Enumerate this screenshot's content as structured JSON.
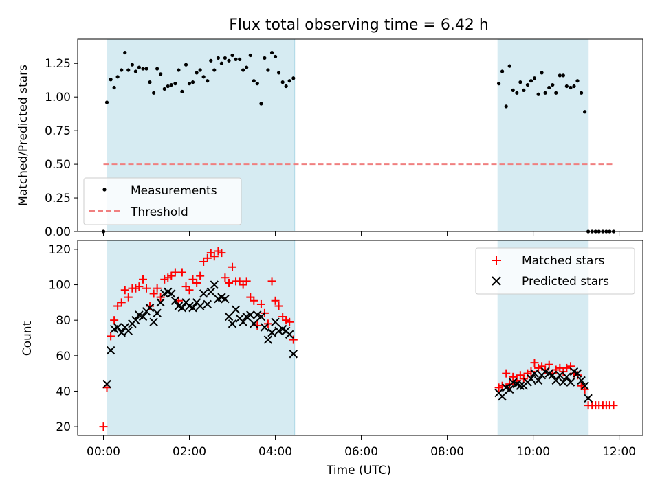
{
  "colors": {
    "band": "#add8e6",
    "threshold": "#f08080",
    "matched": "#ff0000",
    "predicted": "#000000",
    "measurement": "#000000"
  },
  "chart_data": [
    {
      "type": "scatter",
      "title": "Flux total observing time = 6.42 h",
      "xlabel": "",
      "ylabel": "Matched/Predicted stars",
      "xlim": [
        -0.6,
        12.55
      ],
      "ylim": [
        0,
        1.43
      ],
      "yticks": [
        0,
        0.25,
        0.5,
        0.75,
        1.0,
        1.25
      ],
      "ytick_labels": [
        "0.00",
        "0.25",
        "0.50",
        "0.75",
        "1.00",
        "1.25"
      ],
      "observing_windows_hours": [
        [
          0.08,
          4.45
        ],
        [
          9.18,
          11.28
        ]
      ],
      "legend": {
        "position": "lower-left",
        "entries": [
          "Measurements",
          "Threshold"
        ]
      },
      "threshold": {
        "name": "Threshold",
        "value": 0.5,
        "x_range": [
          0.0,
          11.85
        ]
      },
      "series": [
        {
          "name": "Measurements",
          "marker": "dot",
          "x": [
            0.0,
            0.08,
            0.17,
            0.25,
            0.33,
            0.42,
            0.5,
            0.58,
            0.67,
            0.75,
            0.83,
            0.92,
            1.0,
            1.08,
            1.17,
            1.25,
            1.33,
            1.42,
            1.5,
            1.58,
            1.67,
            1.75,
            1.83,
            1.92,
            2.0,
            2.08,
            2.17,
            2.25,
            2.33,
            2.42,
            2.5,
            2.58,
            2.67,
            2.75,
            2.83,
            2.92,
            3.0,
            3.08,
            3.17,
            3.25,
            3.33,
            3.42,
            3.5,
            3.58,
            3.67,
            3.75,
            3.83,
            3.92,
            4.0,
            4.08,
            4.17,
            4.25,
            4.33,
            4.42,
            9.2,
            9.28,
            9.37,
            9.45,
            9.53,
            9.62,
            9.7,
            9.78,
            9.87,
            9.95,
            10.03,
            10.12,
            10.2,
            10.28,
            10.37,
            10.45,
            10.53,
            10.62,
            10.7,
            10.78,
            10.87,
            10.95,
            11.03,
            11.12,
            11.2,
            11.28,
            11.37,
            11.45,
            11.53,
            11.62,
            11.7,
            11.78,
            11.87
          ],
          "values": [
            0.0,
            0.96,
            1.13,
            1.07,
            1.15,
            1.2,
            1.33,
            1.2,
            1.24,
            1.19,
            1.22,
            1.21,
            1.21,
            1.11,
            1.03,
            1.21,
            1.17,
            1.06,
            1.08,
            1.09,
            1.1,
            1.2,
            1.04,
            1.24,
            1.1,
            1.11,
            1.18,
            1.2,
            1.15,
            1.12,
            1.27,
            1.2,
            1.29,
            1.25,
            1.29,
            1.27,
            1.31,
            1.28,
            1.28,
            1.2,
            1.22,
            1.31,
            1.12,
            1.1,
            0.95,
            1.29,
            1.2,
            1.33,
            1.3,
            1.18,
            1.11,
            1.08,
            1.12,
            1.14,
            1.1,
            1.19,
            0.93,
            1.23,
            1.05,
            1.03,
            1.11,
            1.05,
            1.09,
            1.12,
            1.14,
            1.02,
            1.18,
            1.03,
            1.07,
            1.09,
            1.03,
            1.16,
            1.16,
            1.08,
            1.07,
            1.08,
            1.12,
            1.03,
            0.89,
            0.0,
            0.0,
            0.0,
            0.0,
            0.0,
            0.0,
            0.0,
            0.0
          ]
        }
      ]
    },
    {
      "type": "scatter",
      "title": "",
      "xlabel": "Time (UTC)",
      "ylabel": "Count",
      "xlim": [
        -0.6,
        12.55
      ],
      "ylim": [
        15,
        125
      ],
      "xticks": [
        0,
        2,
        4,
        6,
        8,
        10,
        12
      ],
      "xtick_labels": [
        "00:00",
        "02:00",
        "04:00",
        "06:00",
        "08:00",
        "10:00",
        "12:00"
      ],
      "yticks": [
        20,
        40,
        60,
        80,
        100,
        120
      ],
      "ytick_labels": [
        "20",
        "40",
        "60",
        "80",
        "100",
        "120"
      ],
      "observing_windows_hours": [
        [
          0.08,
          4.45
        ],
        [
          9.18,
          11.28
        ]
      ],
      "legend": {
        "position": "upper-right",
        "entries": [
          "Matched stars",
          "Predicted stars"
        ]
      },
      "series": [
        {
          "name": "Matched stars",
          "marker": "plus",
          "x": [
            0.0,
            0.08,
            0.17,
            0.25,
            0.33,
            0.42,
            0.5,
            0.58,
            0.67,
            0.75,
            0.83,
            0.92,
            1.0,
            1.08,
            1.17,
            1.25,
            1.33,
            1.42,
            1.5,
            1.58,
            1.67,
            1.75,
            1.83,
            1.92,
            2.0,
            2.08,
            2.17,
            2.25,
            2.33,
            2.42,
            2.5,
            2.58,
            2.67,
            2.75,
            2.83,
            2.92,
            3.0,
            3.08,
            3.17,
            3.25,
            3.33,
            3.42,
            3.5,
            3.58,
            3.67,
            3.75,
            3.83,
            3.92,
            4.0,
            4.08,
            4.17,
            4.25,
            4.33,
            4.42,
            9.2,
            9.28,
            9.37,
            9.45,
            9.53,
            9.62,
            9.7,
            9.78,
            9.87,
            9.95,
            10.03,
            10.12,
            10.2,
            10.28,
            10.37,
            10.45,
            10.53,
            10.62,
            10.7,
            10.78,
            10.87,
            10.95,
            11.03,
            11.12,
            11.2,
            11.28,
            11.37,
            11.45,
            11.53,
            11.62,
            11.7,
            11.78,
            11.87
          ],
          "values": [
            20,
            42,
            71,
            80,
            88,
            90,
            97,
            93,
            98,
            98,
            99,
            103,
            98,
            88,
            95,
            98,
            93,
            103,
            104,
            105,
            107,
            91,
            107,
            99,
            97,
            103,
            101,
            105,
            113,
            115,
            118,
            116,
            119,
            118,
            104,
            101,
            110,
            102,
            102,
            100,
            102,
            93,
            91,
            77,
            89,
            84,
            78,
            102,
            91,
            88,
            82,
            80,
            79,
            69,
            42,
            43,
            50,
            44,
            48,
            46,
            49,
            47,
            50,
            51,
            56,
            53,
            54,
            52,
            55,
            50,
            52,
            53,
            51,
            53,
            54,
            50,
            49,
            43,
            41,
            32,
            32,
            32,
            32,
            32,
            32,
            32,
            32
          ]
        },
        {
          "name": "Predicted stars",
          "marker": "x",
          "x": [
            0.08,
            0.17,
            0.25,
            0.33,
            0.42,
            0.5,
            0.58,
            0.67,
            0.75,
            0.83,
            0.92,
            1.0,
            1.08,
            1.17,
            1.25,
            1.33,
            1.42,
            1.5,
            1.58,
            1.67,
            1.75,
            1.83,
            1.92,
            2.0,
            2.08,
            2.17,
            2.25,
            2.33,
            2.42,
            2.5,
            2.58,
            2.67,
            2.75,
            2.83,
            2.92,
            3.0,
            3.08,
            3.17,
            3.25,
            3.33,
            3.42,
            3.5,
            3.58,
            3.67,
            3.75,
            3.83,
            3.92,
            4.0,
            4.08,
            4.17,
            4.25,
            4.33,
            4.42,
            9.2,
            9.28,
            9.37,
            9.45,
            9.53,
            9.62,
            9.7,
            9.78,
            9.87,
            9.95,
            10.03,
            10.12,
            10.2,
            10.28,
            10.37,
            10.45,
            10.53,
            10.62,
            10.7,
            10.78,
            10.87,
            10.95,
            11.03,
            11.12,
            11.2,
            11.28
          ],
          "values": [
            44,
            63,
            75,
            76,
            73,
            76,
            74,
            78,
            80,
            83,
            82,
            85,
            87,
            79,
            84,
            90,
            95,
            96,
            95,
            91,
            88,
            87,
            90,
            88,
            87,
            90,
            88,
            95,
            89,
            96,
            100,
            92,
            93,
            92,
            82,
            78,
            86,
            81,
            79,
            82,
            83,
            78,
            83,
            82,
            76,
            69,
            73,
            79,
            74,
            75,
            74,
            72,
            61,
            39,
            37,
            42,
            41,
            45,
            44,
            43,
            43,
            45,
            47,
            50,
            46,
            49,
            51,
            50,
            49,
            46,
            49,
            45,
            48,
            45,
            51,
            50,
            46,
            43,
            36
          ]
        }
      ]
    }
  ]
}
